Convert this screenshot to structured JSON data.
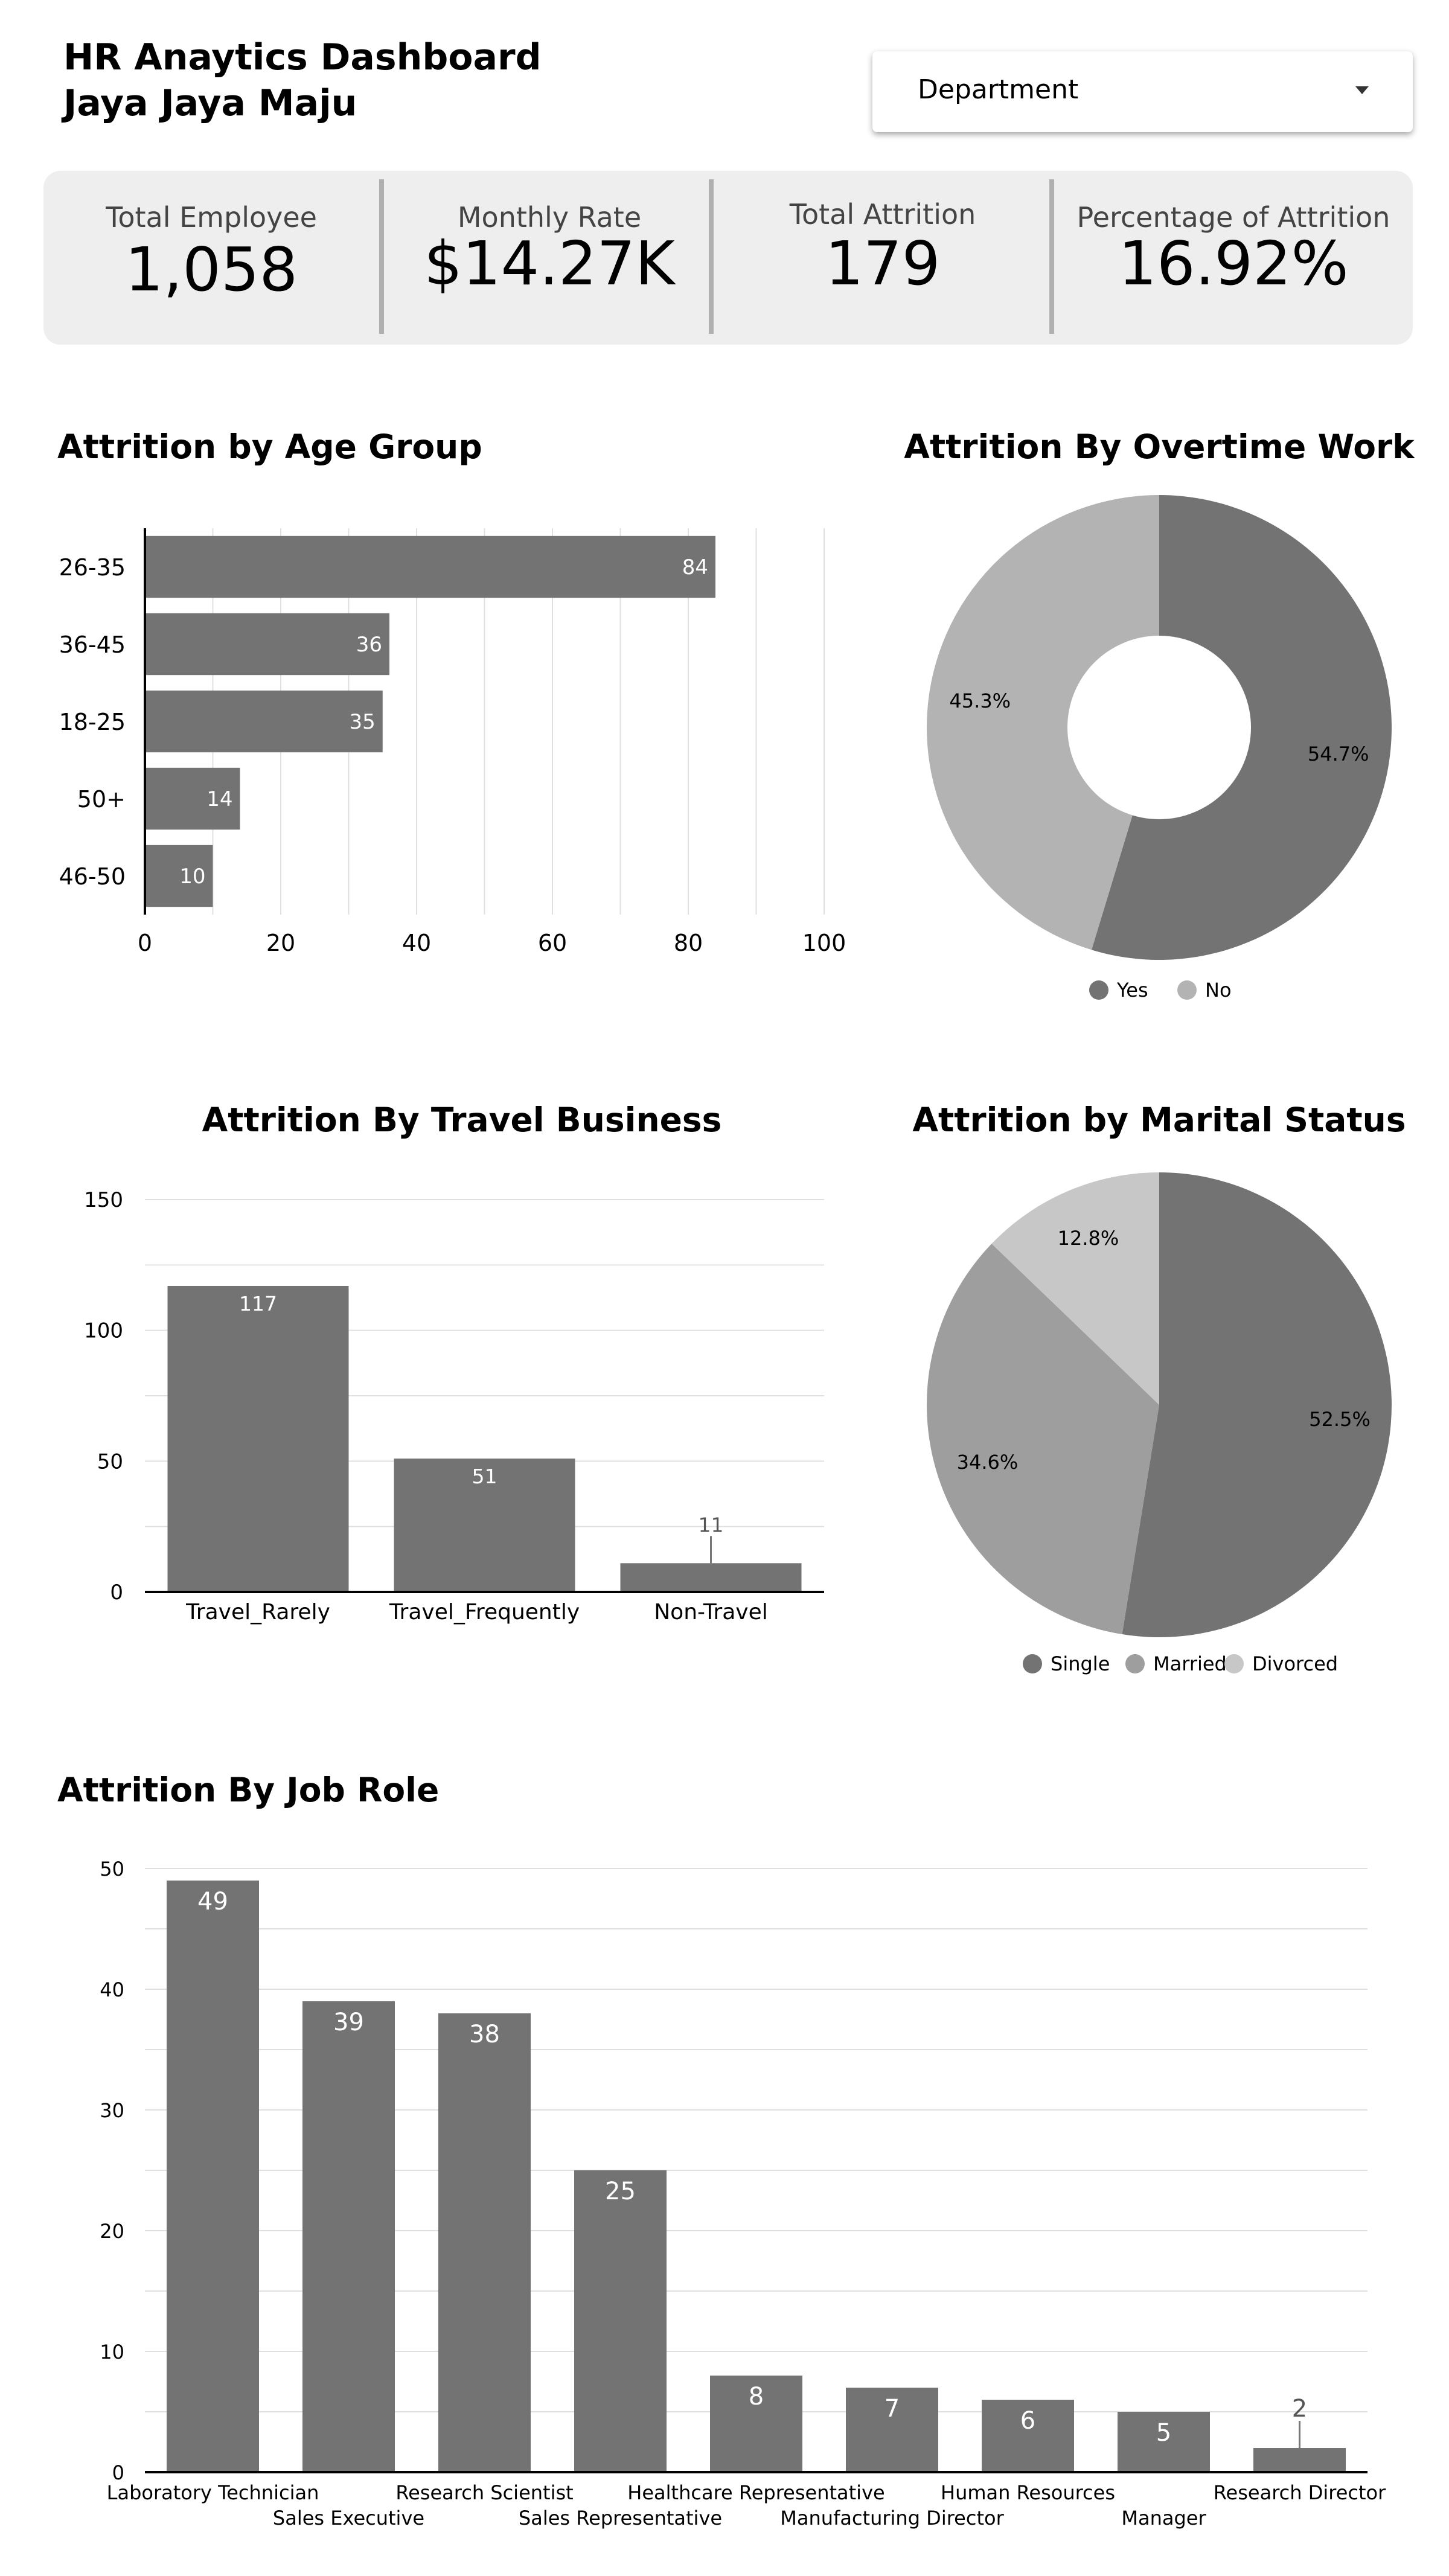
{
  "header": {
    "title_line1": "HR Anaytics Dashboard",
    "title_line2": "Jaya Jaya Maju"
  },
  "filter": {
    "label": "Department",
    "icon": "caret-down-icon"
  },
  "kpis": [
    {
      "label": "Total Employee",
      "value": "1,058"
    },
    {
      "label": "Monthly Rate",
      "value": "$14.27K"
    },
    {
      "label": "Total Attrition",
      "value": "179"
    },
    {
      "label": "Percentage of Attrition",
      "value": "16.92%"
    }
  ],
  "colors": {
    "bar": "#737373",
    "grid": "#e0e0e0",
    "pie_dark": "#737373",
    "pie_mid": "#9e9e9e",
    "pie_light": "#b3b3b3",
    "pie_lighter": "#c7c7c7"
  },
  "chart_data": [
    {
      "id": "age",
      "type": "bar",
      "orientation": "horizontal",
      "title": "Attrition by Age Group",
      "categories": [
        "26-35",
        "36-45",
        "18-25",
        "50+",
        "46-50"
      ],
      "values": [
        84,
        36,
        35,
        14,
        10
      ],
      "xlim": [
        0,
        100
      ],
      "ticks": [
        0,
        20,
        40,
        60,
        80,
        100
      ],
      "grid": true
    },
    {
      "id": "overtime",
      "type": "pie",
      "donut": true,
      "title": "Attrition By Overtime Work",
      "slices": [
        {
          "label": "Yes",
          "value": 54.7,
          "display": "54.7%",
          "color": "#737373"
        },
        {
          "label": "No",
          "value": 45.3,
          "display": "45.3%",
          "color": "#b3b3b3"
        }
      ],
      "legend": "bottom"
    },
    {
      "id": "travel",
      "type": "bar",
      "orientation": "vertical",
      "title": "Attrition By Travel Business",
      "categories": [
        "Travel_Rarely",
        "Travel_Frequently",
        "Non-Travel"
      ],
      "values": [
        117,
        51,
        11
      ],
      "ylim": [
        0,
        150
      ],
      "ticks": [
        0,
        50,
        100,
        150
      ],
      "grid": true
    },
    {
      "id": "marital",
      "type": "pie",
      "donut": false,
      "title": "Attrition by Marital Status",
      "slices": [
        {
          "label": "Single",
          "value": 52.5,
          "display": "52.5%",
          "color": "#737373"
        },
        {
          "label": "Married",
          "value": 34.6,
          "display": "34.6%",
          "color": "#9e9e9e"
        },
        {
          "label": "Divorced",
          "value": 12.8,
          "display": "12.8%",
          "color": "#c7c7c7"
        }
      ],
      "legend": "bottom"
    },
    {
      "id": "jobrole",
      "type": "bar",
      "orientation": "vertical",
      "title": "Attrition By Job Role",
      "categories": [
        "Laboratory Technician",
        "Sales Executive",
        "Research Scientist",
        "Sales Representative",
        "Healthcare Representative",
        "Manufacturing Director",
        "Human Resources",
        "Manager",
        "Research Director"
      ],
      "values": [
        49,
        39,
        38,
        25,
        8,
        7,
        6,
        5,
        2
      ],
      "ylim": [
        0,
        50
      ],
      "ticks": [
        0,
        10,
        20,
        30,
        40,
        50
      ],
      "grid": true
    }
  ]
}
